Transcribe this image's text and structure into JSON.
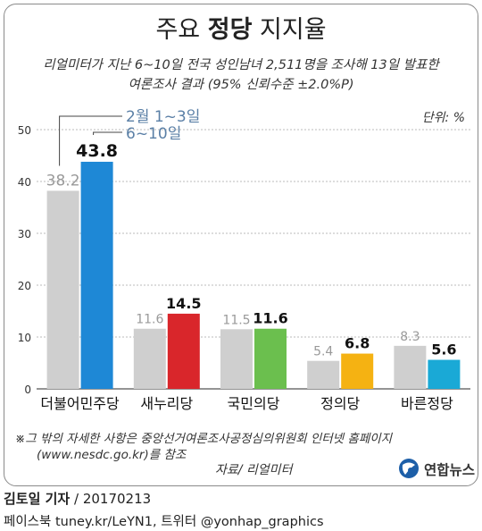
{
  "header": {
    "title_prefix": "주요",
    "title_bold": "정당",
    "title_suffix": "지지율",
    "subtitle_line1": "리얼미터가 지난 6~10일 전국 성인남녀 2,511명을 조사해 13일 발표한",
    "subtitle_line2": "여론조사 결과 (95% 신뢰수준 ±2.0%P)",
    "unit": "단위: %"
  },
  "chart_data": {
    "type": "bar",
    "categories": [
      "더불어민주당",
      "새누리당",
      "국민의당",
      "정의당",
      "바른정당"
    ],
    "series": [
      {
        "name": "2월 1~3일",
        "values": [
          38.2,
          11.6,
          11.5,
          5.4,
          8.3
        ],
        "color": "#cfcfcf"
      },
      {
        "name": "6~10일",
        "values": [
          43.8,
          14.5,
          11.6,
          6.8,
          5.6
        ],
        "colors": [
          "#1e88d6",
          "#d9262b",
          "#6bbf4e",
          "#f5b212",
          "#1aa9d6"
        ]
      }
    ],
    "yticks": [
      0,
      10,
      20,
      30,
      40,
      50
    ],
    "ylim": [
      0,
      50
    ],
    "legend_position": "top-left",
    "label_colors": {
      "previous": "#9a9a9a",
      "current": "#111111",
      "legend": "#5a7fa6"
    }
  },
  "footer": {
    "note_line1": "※그 밖의 자세한 사항은 중앙선거여론조사공정심의위원회 인터넷 홈페이지",
    "note_line2": "(www.nesdc.go.kr)를 참조",
    "source": "자료/ 리얼미터",
    "logo_text": "연합뉴스",
    "reporter_name": "김토일 기자",
    "reporter_date": " / 20170213",
    "social": "페이스북 tuney.kr/LeYN1, 트위터 @yonhap_graphics"
  }
}
